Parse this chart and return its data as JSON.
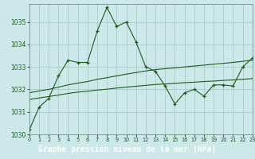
{
  "title": "Graphe pression niveau de la mer (hPa)",
  "background_color": "#cce8e8",
  "plot_bg_color": "#cce8e8",
  "grid_color": "#aacccc",
  "line_color": "#1a5c1a",
  "title_bg_color": "#2d8c2d",
  "title_text_color": "#ffffff",
  "x_values": [
    0,
    1,
    2,
    3,
    4,
    5,
    6,
    7,
    8,
    9,
    10,
    11,
    12,
    13,
    14,
    15,
    16,
    17,
    18,
    19,
    20,
    21,
    22,
    23
  ],
  "y_main": [
    1030.2,
    1031.2,
    1031.6,
    1032.6,
    1033.3,
    1033.2,
    1033.2,
    1034.6,
    1035.65,
    1034.8,
    1035.0,
    1034.1,
    1033.0,
    1032.8,
    1032.15,
    1031.35,
    1031.85,
    1032.0,
    1031.7,
    1032.2,
    1032.2,
    1032.15,
    1033.0,
    1033.4
  ],
  "y_smooth1": [
    1031.85,
    1031.93,
    1032.0,
    1032.1,
    1032.2,
    1032.28,
    1032.35,
    1032.45,
    1032.52,
    1032.6,
    1032.68,
    1032.75,
    1032.82,
    1032.88,
    1032.92,
    1032.96,
    1033.0,
    1033.04,
    1033.08,
    1033.12,
    1033.16,
    1033.2,
    1033.25,
    1033.3
  ],
  "y_smooth2": [
    1031.55,
    1031.62,
    1031.68,
    1031.75,
    1031.82,
    1031.88,
    1031.92,
    1031.97,
    1032.01,
    1032.06,
    1032.1,
    1032.14,
    1032.18,
    1032.22,
    1032.24,
    1032.27,
    1032.3,
    1032.32,
    1032.35,
    1032.37,
    1032.4,
    1032.42,
    1032.45,
    1032.48
  ],
  "ylim": [
    1030.0,
    1035.8
  ],
  "yticks": [
    1030,
    1031,
    1032,
    1033,
    1034,
    1035
  ],
  "xlim": [
    0,
    23
  ],
  "xticks": [
    0,
    1,
    2,
    3,
    4,
    5,
    6,
    7,
    8,
    9,
    10,
    11,
    12,
    13,
    14,
    15,
    16,
    17,
    18,
    19,
    20,
    21,
    22,
    23
  ]
}
